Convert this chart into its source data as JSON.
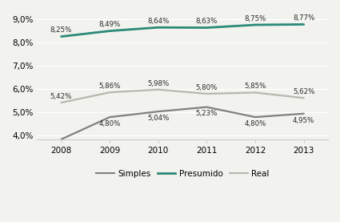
{
  "years": [
    2008,
    2009,
    2010,
    2011,
    2012,
    2013
  ],
  "simples": [
    3.85,
    4.8,
    5.04,
    5.23,
    4.8,
    4.95
  ],
  "presumido": [
    8.25,
    8.49,
    8.64,
    8.63,
    8.75,
    8.77
  ],
  "real": [
    5.42,
    5.86,
    5.98,
    5.8,
    5.85,
    5.62
  ],
  "simples_labels": [
    "",
    "4,80%",
    "5,04%",
    "5,23%",
    "4,80%",
    "4,95%"
  ],
  "presumido_labels": [
    "8,25%",
    "8,49%",
    "8,64%",
    "8,63%",
    "8,75%",
    "8,77%"
  ],
  "real_labels": [
    "5,42%",
    "5,86%",
    "5,98%",
    "5,80%",
    "5,85%",
    "5,62%"
  ],
  "simples_color": "#808080",
  "presumido_color": "#2b8a78",
  "real_color": "#b8b8b0",
  "ylim": [
    3.85,
    9.3
  ],
  "yticks": [
    4.0,
    5.0,
    6.0,
    7.0,
    8.0,
    9.0
  ],
  "ytick_labels": [
    "4,0%",
    "5,0%",
    "6,0%",
    "7,0%",
    "8,0%",
    "9,0%"
  ],
  "background_color": "#f2f2ee",
  "legend_labels": [
    "Simples",
    "Presumido",
    "Real"
  ],
  "presumido_label_offsets": [
    0.11,
    0.11,
    0.11,
    0.11,
    0.11,
    0.11
  ],
  "real_label_offsets": [
    0.11,
    0.11,
    0.11,
    0.11,
    0.11,
    0.11
  ],
  "simples_label_offsets": [
    -0.13,
    -0.13,
    -0.13,
    -0.13,
    -0.13,
    -0.13
  ]
}
